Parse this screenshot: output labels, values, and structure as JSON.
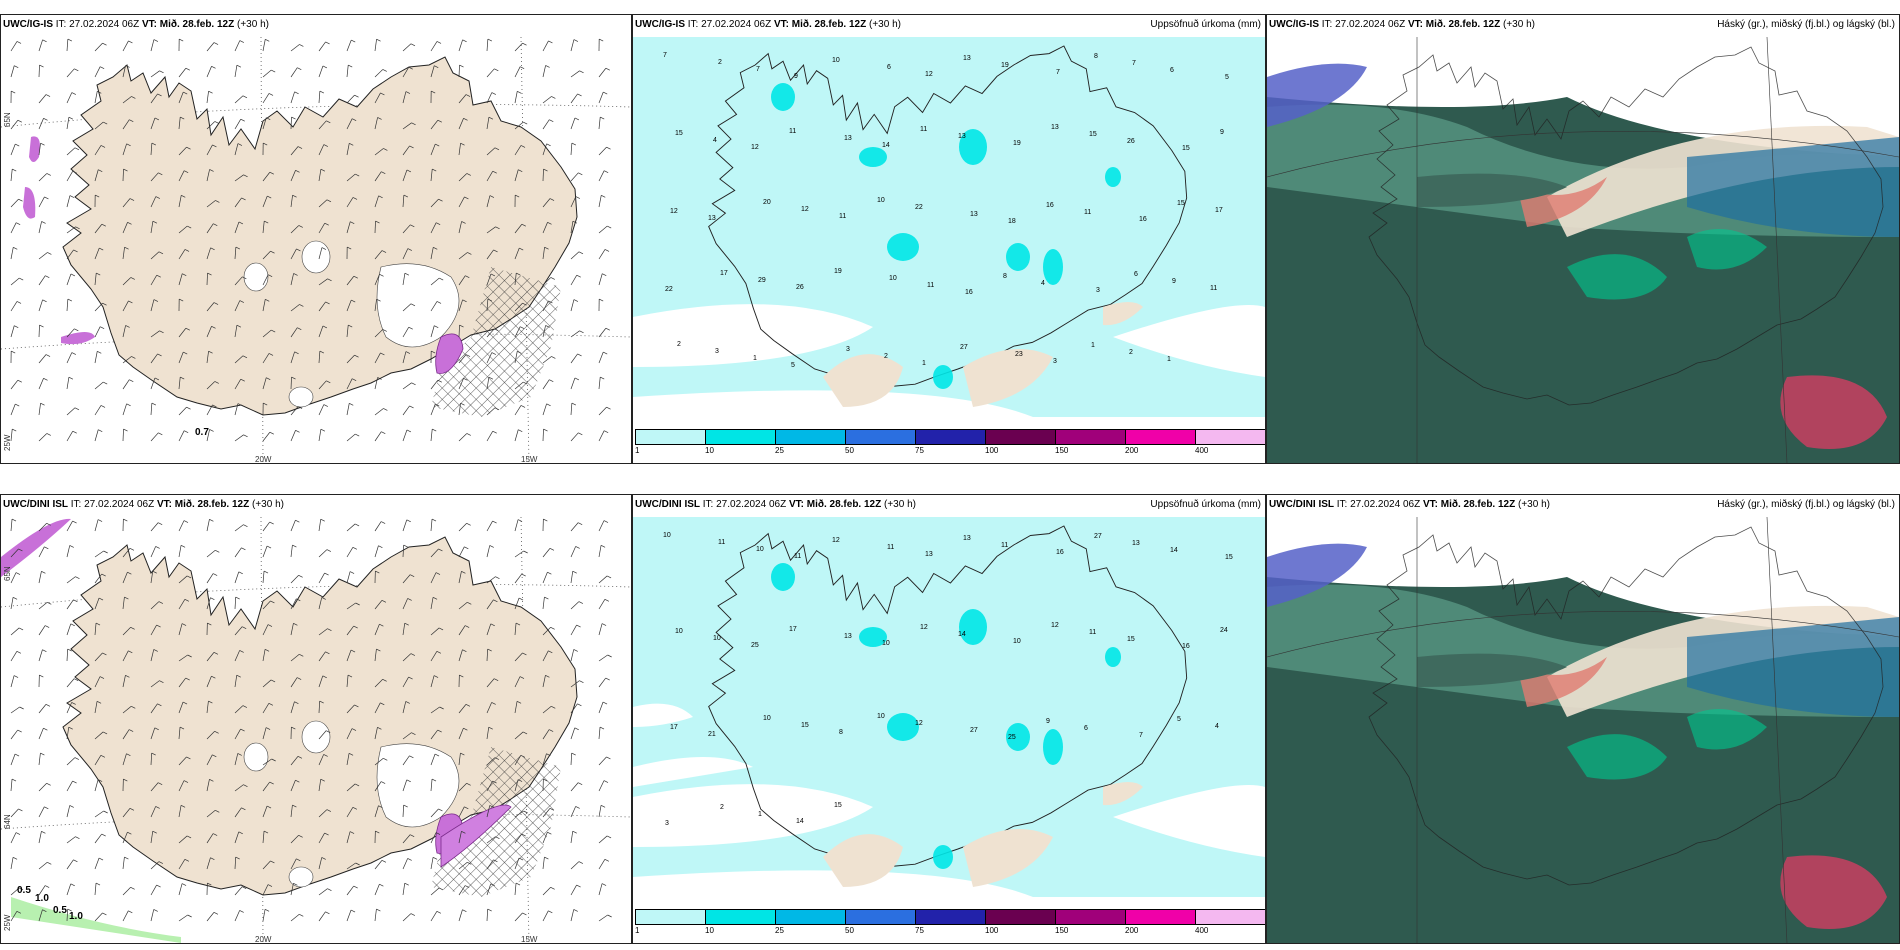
{
  "top": {
    "wind": {
      "model": "UWC/IG-IS",
      "it_label": "IT:",
      "it": "27.02.2024 06Z",
      "vt_label": "VT:",
      "vt": "Mið. 28.feb. 12Z",
      "lead": "(+30 h)",
      "right": ""
    },
    "precip": {
      "model": "UWC/IG-IS",
      "it_label": "IT:",
      "it": "27.02.2024 06Z",
      "vt_label": "VT:",
      "vt": "Mið. 28.feb. 12Z",
      "lead": "(+30 h)",
      "right": "Uppsöfnuð úrkoma (mm)"
    },
    "cloud": {
      "model": "UWC/IG-IS",
      "it_label": "IT:",
      "it": "27.02.2024 06Z",
      "vt_label": "VT:",
      "vt": "Mið. 28.feb. 12Z",
      "lead": "(+30 h)",
      "right": "Háský (gr.), miðský (fj.bl.) og lágský (bl.)"
    }
  },
  "bottom": {
    "wind": {
      "model": "UWC/DINI ISL",
      "it_label": "IT:",
      "it": "27.02.2024 06Z",
      "vt_label": "VT:",
      "vt": "Mið. 28.feb. 12Z",
      "lead": "(+30 h)",
      "right": ""
    },
    "precip": {
      "model": "UWC/DINI ISL",
      "it_label": "IT:",
      "it": "27.02.2024 06Z",
      "vt_label": "VT:",
      "vt": "Mið. 28.feb. 12Z",
      "lead": "(+30 h)",
      "right": "Uppsöfnuð úrkoma (mm)"
    },
    "cloud": {
      "model": "UWC/DINI ISL",
      "it_label": "IT:",
      "it": "27.02.2024 06Z",
      "vt_label": "VT:",
      "vt": "Mið. 28.feb. 12Z",
      "lead": "(+30 h)",
      "right": "Háský (gr.), miðský (fj.bl.) og lágský (bl.)"
    }
  },
  "grid_labels": {
    "lon_20w": "20W",
    "lon_15w": "15W",
    "lat_65n": "65N",
    "lat_64n": "64N",
    "lon_25w": "25W"
  },
  "colorbar": {
    "ticks": [
      "1",
      "10",
      "25",
      "50",
      "75",
      "100",
      "150",
      "200",
      "400"
    ],
    "colors": [
      "#bff7f7",
      "#00e5e5",
      "#00b8e6",
      "#2b6fe0",
      "#2222aa",
      "#6a0050",
      "#a0007a",
      "#f000a8",
      "#f4b8f0"
    ]
  },
  "wind_labels_top": [
    "0.7"
  ],
  "wind_labels_bottom": [
    "0.5",
    "1.0",
    "0.5",
    "1.0"
  ],
  "precip_top_values": [
    "7",
    "2",
    "7",
    "9",
    "10",
    "6",
    "12",
    "13",
    "19",
    "7",
    "8",
    "7",
    "6",
    "5",
    "15",
    "4",
    "12",
    "11",
    "13",
    "14",
    "11",
    "13",
    "19",
    "13",
    "15",
    "26",
    "15",
    "9",
    "12",
    "13",
    "20",
    "12",
    "11",
    "10",
    "22",
    "13",
    "18",
    "16",
    "11",
    "16",
    "15",
    "17",
    "22",
    "17",
    "29",
    "26",
    "19",
    "10",
    "11",
    "16",
    "8",
    "4",
    "3",
    "6",
    "9",
    "11",
    "2",
    "3",
    "1",
    "5",
    "3",
    "2",
    "1",
    "27",
    "23",
    "3",
    "1",
    "2",
    "1"
  ],
  "precip_bottom_values": [
    "10",
    "11",
    "10",
    "11",
    "12",
    "11",
    "13",
    "13",
    "11",
    "16",
    "27",
    "13",
    "14",
    "15",
    "10",
    "10",
    "25",
    "17",
    "13",
    "10",
    "12",
    "14",
    "10",
    "12",
    "11",
    "15",
    "16",
    "24",
    "17",
    "21",
    "10",
    "15",
    "8",
    "10",
    "12",
    "27",
    "25",
    "9",
    "6",
    "7",
    "5",
    "4",
    "3",
    "2",
    "1",
    "14",
    "15"
  ]
}
